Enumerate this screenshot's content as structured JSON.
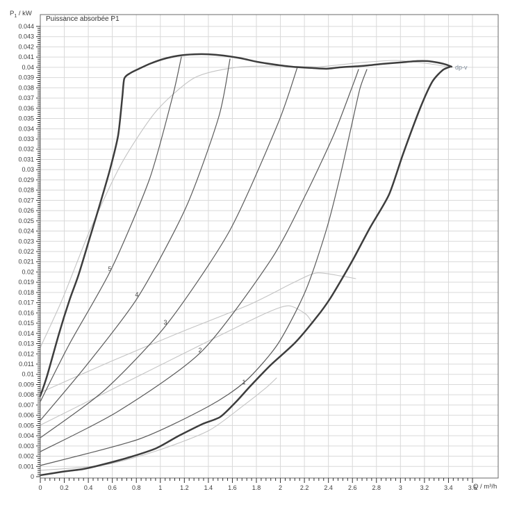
{
  "title": "Puissance absorbée P1",
  "axis_titles": {
    "y_main": "P",
    "y_sub": "1",
    "y_rest": " / kW",
    "x": "Q / m³/h"
  },
  "colors": {
    "grid": "#d9d9d9",
    "border": "#6a6a6a",
    "axis": "#2f2f2f",
    "thick_curve": "#3d3d3d",
    "medium_curve": "#5a5a5a",
    "light_curve": "#c3c3c3",
    "label_text": "#4a4a4a",
    "dpv_text": "#7d8a99"
  },
  "chart_data": {
    "type": "line",
    "title": "Puissance absorbée P1",
    "xlabel": "Q / m³/h",
    "ylabel": "P1 / kW",
    "xlim": [
      0,
      3.6
    ],
    "ylim": [
      0,
      0.044
    ],
    "x_major_step": 0.2,
    "x_minor_step": 0.04,
    "y_major_step": 0.001,
    "y_minor_step": 0.0002,
    "grid": true,
    "legend_position": "none",
    "series": [
      {
        "name": "envelope-upper-max-speed",
        "style": "thick",
        "points": [
          [
            0,
            0.00788
          ],
          [
            0.058,
            0.00991
          ],
          [
            0.156,
            0.01399
          ],
          [
            0.243,
            0.01725
          ],
          [
            0.318,
            0.01969
          ],
          [
            0.399,
            0.02282
          ],
          [
            0.486,
            0.02621
          ],
          [
            0.579,
            0.02995
          ],
          [
            0.648,
            0.03334
          ],
          [
            0.683,
            0.03707
          ],
          [
            0.7,
            0.03891
          ],
          [
            0.752,
            0.03945
          ],
          [
            0.822,
            0.03986
          ],
          [
            0.909,
            0.04033
          ],
          [
            1.024,
            0.04081
          ],
          [
            1.157,
            0.04115
          ],
          [
            1.285,
            0.04128
          ],
          [
            1.4,
            0.04128
          ],
          [
            1.528,
            0.04115
          ],
          [
            1.672,
            0.04088
          ],
          [
            1.806,
            0.04054
          ],
          [
            1.95,
            0.04027
          ],
          [
            2.095,
            0.04006
          ],
          [
            2.269,
            0.03993
          ],
          [
            2.384,
            0.03986
          ],
          [
            2.5,
            0.04
          ],
          [
            2.674,
            0.04013
          ],
          [
            2.847,
            0.04033
          ],
          [
            2.992,
            0.04047
          ],
          [
            3.137,
            0.04061
          ],
          [
            3.224,
            0.04061
          ],
          [
            3.31,
            0.04047
          ],
          [
            3.38,
            0.04027
          ],
          [
            3.426,
            0.04006
          ]
        ]
      },
      {
        "name": "envelope-lower-dpv",
        "style": "thick",
        "points": [
          [
            0,
            0.00014
          ],
          [
            0.185,
            0.00048
          ],
          [
            0.359,
            0.00075
          ],
          [
            0.532,
            0.00122
          ],
          [
            0.764,
            0.00197
          ],
          [
            0.966,
            0.00278
          ],
          [
            1.157,
            0.00401
          ],
          [
            1.354,
            0.00516
          ],
          [
            1.499,
            0.00584
          ],
          [
            1.632,
            0.00733
          ],
          [
            1.748,
            0.00883
          ],
          [
            1.921,
            0.01093
          ],
          [
            2.124,
            0.01311
          ],
          [
            2.309,
            0.01569
          ],
          [
            2.413,
            0.01738
          ],
          [
            2.517,
            0.01942
          ],
          [
            2.616,
            0.02146
          ],
          [
            2.749,
            0.02438
          ],
          [
            2.905,
            0.02757
          ],
          [
            3.021,
            0.03151
          ],
          [
            3.166,
            0.03606
          ],
          [
            3.264,
            0.03857
          ],
          [
            3.351,
            0.03972
          ],
          [
            3.415,
            0.04006
          ]
        ]
      },
      {
        "name": "setting-curve-5",
        "style": "medium",
        "points": [
          [
            0,
            0.00733
          ],
          [
            0.243,
            0.01297
          ],
          [
            0.59,
            0.02024
          ],
          [
            0.909,
            0.02906
          ],
          [
            1.1,
            0.03707
          ],
          [
            1.175,
            0.04101
          ]
        ]
      },
      {
        "name": "setting-curve-4",
        "style": "medium",
        "points": [
          [
            0,
            0.0055
          ],
          [
            0.388,
            0.01093
          ],
          [
            0.816,
            0.01759
          ],
          [
            1.215,
            0.02635
          ],
          [
            1.487,
            0.03517
          ],
          [
            1.58,
            0.04081
          ]
        ]
      },
      {
        "name": "setting-curve-3",
        "style": "medium",
        "points": [
          [
            0,
            0.0038
          ],
          [
            0.532,
            0.00842
          ],
          [
            1.053,
            0.01487
          ],
          [
            1.574,
            0.02397
          ],
          [
            1.979,
            0.03449
          ],
          [
            2.141,
            0.03999
          ]
        ]
      },
      {
        "name": "setting-curve-2",
        "style": "medium",
        "points": [
          [
            0,
            0.00244
          ],
          [
            0.648,
            0.00638
          ],
          [
            1.343,
            0.01222
          ],
          [
            1.921,
            0.02119
          ],
          [
            2.211,
            0.02757
          ],
          [
            2.442,
            0.03334
          ],
          [
            2.587,
            0.03775
          ],
          [
            2.651,
            0.03979
          ]
        ]
      },
      {
        "name": "setting-curve-1",
        "style": "medium",
        "points": [
          [
            0,
            0.00109
          ],
          [
            0.822,
            0.00367
          ],
          [
            1.4,
            0.00686
          ],
          [
            1.707,
            0.0093
          ],
          [
            1.979,
            0.01297
          ],
          [
            2.211,
            0.0182
          ],
          [
            2.384,
            0.02417
          ],
          [
            2.5,
            0.02947
          ],
          [
            2.587,
            0.03402
          ],
          [
            2.662,
            0.03789
          ],
          [
            2.72,
            0.03979
          ]
        ]
      },
      {
        "name": "speed-arc-max",
        "style": "light",
        "points": [
          [
            0,
            0.01263
          ],
          [
            0.185,
            0.01738
          ],
          [
            0.417,
            0.02417
          ],
          [
            0.677,
            0.03062
          ],
          [
            0.966,
            0.03572
          ],
          [
            1.285,
            0.03898
          ],
          [
            1.632,
            0.04
          ],
          [
            1.979,
            0.04013
          ],
          [
            2.326,
            0.04006
          ],
          [
            2.674,
            0.04047
          ],
          [
            2.963,
            0.04067
          ],
          [
            3.252,
            0.04033
          ],
          [
            3.415,
            0.04
          ]
        ]
      },
      {
        "name": "speed-arc-mid-high",
        "style": "light",
        "points": [
          [
            0,
            0.00822
          ],
          [
            0.59,
            0.01127
          ],
          [
            1.169,
            0.01412
          ],
          [
            1.748,
            0.01684
          ],
          [
            2.095,
            0.01888
          ],
          [
            2.297,
            0.0199
          ],
          [
            2.5,
            0.01962
          ],
          [
            2.627,
            0.01935
          ]
        ]
      },
      {
        "name": "speed-arc-mid-low",
        "style": "light",
        "points": [
          [
            0,
            0.00503
          ],
          [
            0.822,
            0.00985
          ],
          [
            1.4,
            0.01324
          ],
          [
            1.863,
            0.01589
          ],
          [
            2.066,
            0.0167
          ],
          [
            2.211,
            0.01589
          ],
          [
            2.269,
            0.01494
          ]
        ]
      },
      {
        "name": "speed-arc-min",
        "style": "light",
        "points": [
          [
            0,
            0.00061
          ],
          [
            0.532,
            0.00115
          ],
          [
            0.966,
            0.00251
          ],
          [
            1.4,
            0.00448
          ],
          [
            1.69,
            0.00693
          ],
          [
            1.881,
            0.00869
          ],
          [
            1.968,
            0.00964
          ]
        ]
      }
    ],
    "annotations": [
      {
        "text": "5",
        "q": 0.579,
        "p": 0.0203,
        "anchor": "middle",
        "kind": "curve-number"
      },
      {
        "text": "4",
        "q": 0.804,
        "p": 0.01779,
        "anchor": "middle",
        "kind": "curve-number"
      },
      {
        "text": "3",
        "q": 1.042,
        "p": 0.01507,
        "anchor": "middle",
        "kind": "curve-number"
      },
      {
        "text": "2",
        "q": 1.331,
        "p": 0.01236,
        "anchor": "middle",
        "kind": "curve-number"
      },
      {
        "text": "1",
        "q": 1.696,
        "p": 0.00923,
        "anchor": "middle",
        "kind": "curve-number"
      },
      {
        "text": "dp-v",
        "q": 3.455,
        "p": 0.03999,
        "anchor": "start",
        "kind": "control-mode"
      }
    ]
  }
}
